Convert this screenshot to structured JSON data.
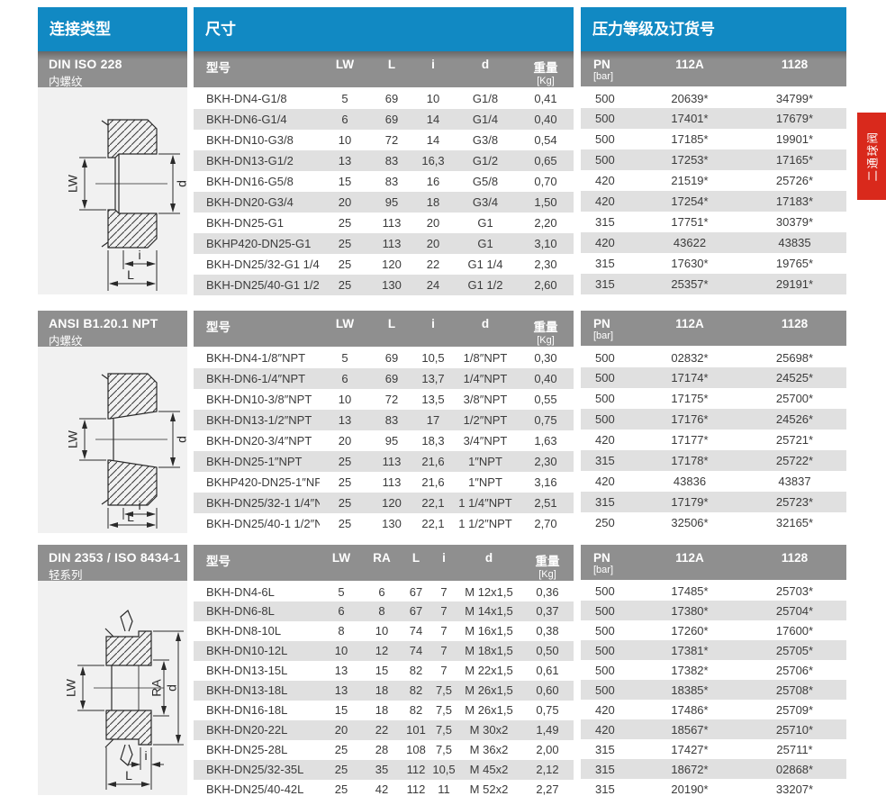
{
  "page": {
    "column_headers": {
      "connection_type": "连接类型",
      "dimensions": "尺寸",
      "pressure_order": "压力等级及订货号"
    },
    "side_tab": {
      "label": "二通球阀",
      "color": "#d9291c"
    },
    "colors": {
      "accent_blue": "#1189c3",
      "header_gray": "#8f8f8f",
      "row_stripe": "#e0e0e0",
      "drawing_bg": "#f1f1f1"
    }
  },
  "sections": [
    {
      "title_line1": "DIN ISO 228",
      "title_line2": "内螺纹",
      "drawing_labels": {
        "lw": "LW",
        "d": "d",
        "i": "i",
        "l": "L"
      },
      "dim_table": {
        "col_model": "型号",
        "col_lw": "LW",
        "col_l": "L",
        "col_i": "i",
        "col_d": "d",
        "col_wt": "重量",
        "col_wt_sub": "[Kg]",
        "rows": [
          [
            "BKH-DN4-G1/8",
            "5",
            "69",
            "10",
            "G1/8",
            "0,41"
          ],
          [
            "BKH-DN6-G1/4",
            "6",
            "69",
            "14",
            "G1/4",
            "0,40"
          ],
          [
            "BKH-DN10-G3/8",
            "10",
            "72",
            "14",
            "G3/8",
            "0,54"
          ],
          [
            "BKH-DN13-G1/2",
            "13",
            "83",
            "16,3",
            "G1/2",
            "0,65"
          ],
          [
            "BKH-DN16-G5/8",
            "15",
            "83",
            "16",
            "G5/8",
            "0,70"
          ],
          [
            "BKH-DN20-G3/4",
            "20",
            "95",
            "18",
            "G3/4",
            "1,50"
          ],
          [
            "BKH-DN25-G1",
            "25",
            "113",
            "20",
            "G1",
            "2,20"
          ],
          [
            "BKHP420-DN25-G1",
            "25",
            "113",
            "20",
            "G1",
            "3,10"
          ],
          [
            "BKH-DN25/32-G1 1/4",
            "25",
            "120",
            "22",
            "G1 1/4",
            "2,30"
          ],
          [
            "BKH-DN25/40-G1 1/2",
            "25",
            "130",
            "24",
            "G1 1/2",
            "2,60"
          ]
        ]
      },
      "pn_table": {
        "col_pn": "PN",
        "col_pn_sub": "[bar]",
        "col_112a": "112A",
        "col_1128": "1128",
        "rows": [
          [
            "500",
            "20639*",
            "34799*"
          ],
          [
            "500",
            "17401*",
            "17679*"
          ],
          [
            "500",
            "17185*",
            "19901*"
          ],
          [
            "500",
            "17253*",
            "17165*"
          ],
          [
            "420",
            "21519*",
            "25726*"
          ],
          [
            "420",
            "17254*",
            "17183*"
          ],
          [
            "315",
            "17751*",
            "30379*"
          ],
          [
            "420",
            "43622",
            "43835"
          ],
          [
            "315",
            "17630*",
            "19765*"
          ],
          [
            "315",
            "25357*",
            "29191*"
          ]
        ]
      }
    },
    {
      "title_line1": "ANSI B1.20.1 NPT",
      "title_line2": "内螺纹",
      "drawing_labels": {
        "lw": "LW",
        "d": "d",
        "i": "i",
        "l": "L"
      },
      "dim_table": {
        "col_model": "型号",
        "col_lw": "LW",
        "col_l": "L",
        "col_i": "i",
        "col_d": "d",
        "col_wt": "重量",
        "col_wt_sub": "[Kg]",
        "rows": [
          [
            "BKH-DN4-1/8″NPT",
            "5",
            "69",
            "10,5",
            "1/8″NPT",
            "0,30"
          ],
          [
            "BKH-DN6-1/4″NPT",
            "6",
            "69",
            "13,7",
            "1/4″NPT",
            "0,40"
          ],
          [
            "BKH-DN10-3/8″NPT",
            "10",
            "72",
            "13,5",
            "3/8″NPT",
            "0,55"
          ],
          [
            "BKH-DN13-1/2″NPT",
            "13",
            "83",
            "17",
            "1/2″NPT",
            "0,75"
          ],
          [
            "BKH-DN20-3/4″NPT",
            "20",
            "95",
            "18,3",
            "3/4″NPT",
            "1,63"
          ],
          [
            "BKH-DN25-1″NPT",
            "25",
            "113",
            "21,6",
            "1″NPT",
            "2,30"
          ],
          [
            "BKHP420-DN25-1″NPT",
            "25",
            "113",
            "21,6",
            "1″NPT",
            "3,16"
          ],
          [
            "BKH-DN25/32-1 1/4″NPT",
            "25",
            "120",
            "22,1",
            "1 1/4″NPT",
            "2,51"
          ],
          [
            "BKH-DN25/40-1 1/2″NPT",
            "25",
            "130",
            "22,1",
            "1 1/2″NPT",
            "2,70"
          ]
        ]
      },
      "pn_table": {
        "col_pn": "PN",
        "col_pn_sub": "[bar]",
        "col_112a": "112A",
        "col_1128": "1128",
        "rows": [
          [
            "500",
            "02832*",
            "25698*"
          ],
          [
            "500",
            "17174*",
            "24525*"
          ],
          [
            "500",
            "17175*",
            "25700*"
          ],
          [
            "500",
            "17176*",
            "24526*"
          ],
          [
            "420",
            "17177*",
            "25721*"
          ],
          [
            "315",
            "17178*",
            "25722*"
          ],
          [
            "420",
            "43836",
            "43837"
          ],
          [
            "315",
            "17179*",
            "25723*"
          ],
          [
            "250",
            "32506*",
            "32165*"
          ]
        ]
      }
    },
    {
      "title_line1": "DIN 2353 / ISO 8434-1",
      "title_line2": "轻系列",
      "drawing_labels": {
        "lw": "LW",
        "ra": "RA",
        "d": "d",
        "i": "i",
        "l": "L"
      },
      "dim_table": {
        "col_model": "型号",
        "col_lw": "LW",
        "col_ra": "RA",
        "col_l": "L",
        "col_i": "i",
        "col_d": "d",
        "col_wt": "重量",
        "col_wt_sub": "[Kg]",
        "rows": [
          [
            "BKH-DN4-6L",
            "5",
            "6",
            "67",
            "7",
            "M 12x1,5",
            "0,36"
          ],
          [
            "BKH-DN6-8L",
            "6",
            "8",
            "67",
            "7",
            "M 14x1,5",
            "0,37"
          ],
          [
            "BKH-DN8-10L",
            "8",
            "10",
            "74",
            "7",
            "M 16x1,5",
            "0,38"
          ],
          [
            "BKH-DN10-12L",
            "10",
            "12",
            "74",
            "7",
            "M 18x1,5",
            "0,50"
          ],
          [
            "BKH-DN13-15L",
            "13",
            "15",
            "82",
            "7",
            "M 22x1,5",
            "0,61"
          ],
          [
            "BKH-DN13-18L",
            "13",
            "18",
            "82",
            "7,5",
            "M 26x1,5",
            "0,60"
          ],
          [
            "BKH-DN16-18L",
            "15",
            "18",
            "82",
            "7,5",
            "M 26x1,5",
            "0,75"
          ],
          [
            "BKH-DN20-22L",
            "20",
            "22",
            "101",
            "7,5",
            "M 30x2",
            "1,49"
          ],
          [
            "BKH-DN25-28L",
            "25",
            "28",
            "108",
            "7,5",
            "M 36x2",
            "2,00"
          ],
          [
            "BKH-DN25/32-35L",
            "25",
            "35",
            "112",
            "10,5",
            "M 45x2",
            "2,12"
          ],
          [
            "BKH-DN25/40-42L",
            "25",
            "42",
            "112",
            "11",
            "M 52x2",
            "2,27"
          ]
        ]
      },
      "pn_table": {
        "col_pn": "PN",
        "col_pn_sub": "[bar]",
        "col_112a": "112A",
        "col_1128": "1128",
        "rows": [
          [
            "500",
            "17485*",
            "25703*"
          ],
          [
            "500",
            "17380*",
            "25704*"
          ],
          [
            "500",
            "17260*",
            "17600*"
          ],
          [
            "500",
            "17381*",
            "25705*"
          ],
          [
            "500",
            "17382*",
            "25706*"
          ],
          [
            "500",
            "18385*",
            "25708*"
          ],
          [
            "420",
            "17486*",
            "25709*"
          ],
          [
            "420",
            "18567*",
            "25710*"
          ],
          [
            "315",
            "17427*",
            "25711*"
          ],
          [
            "315",
            "18672*",
            "02868*"
          ],
          [
            "315",
            "20190*",
            "33207*"
          ]
        ]
      }
    }
  ]
}
